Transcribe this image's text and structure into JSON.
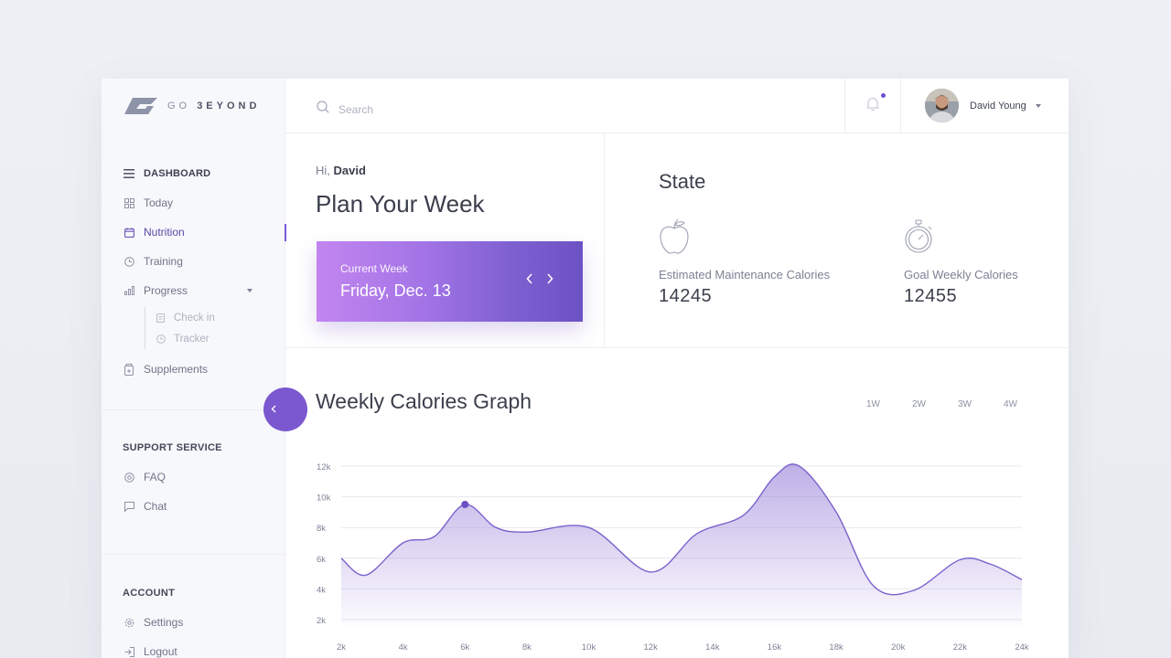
{
  "brand": {
    "logo_pre": "GO",
    "logo_post": "3EYOND"
  },
  "sidebar": {
    "nav": [
      {
        "label": "DASHBOARD",
        "icon": "menu-icon"
      },
      {
        "label": "Today",
        "icon": "grid-icon"
      },
      {
        "label": "Nutrition",
        "icon": "calendar-icon",
        "active": true
      },
      {
        "label": "Training",
        "icon": "clock-icon"
      },
      {
        "label": "Progress",
        "icon": "bar-chart-icon"
      }
    ],
    "sub": [
      {
        "label": "Check in",
        "icon": "clipboard-icon"
      },
      {
        "label": "Tracker",
        "icon": "clock-icon"
      }
    ],
    "supplements": "Supplements",
    "support_title": "SUPPORT SERVICE",
    "support": [
      {
        "label": "FAQ"
      },
      {
        "label": "Chat"
      }
    ],
    "account_title": "ACCOUNT",
    "account": [
      {
        "label": "Settings"
      },
      {
        "label": "Logout"
      }
    ]
  },
  "search": {
    "placeholder": "Search"
  },
  "user": {
    "name": "David Young"
  },
  "plan": {
    "greeting": "Hi,",
    "name": "David",
    "title": "Plan Your Week",
    "week_label": "Current Week",
    "week_date": "Friday, Dec. 13"
  },
  "state": {
    "title": "State",
    "stats": [
      {
        "label": "Estimated Maintenance Calories",
        "value": "14245",
        "icon": "apple-icon"
      },
      {
        "label": "Goal Weekly Calories",
        "value": "12455",
        "icon": "stopwatch-icon"
      }
    ]
  },
  "graph": {
    "title": "Weekly Calories Graph",
    "ranges": [
      "1W",
      "2W",
      "3W",
      "4W"
    ]
  },
  "colors": {
    "accent": "#7b58cf",
    "line": "#7a62cc",
    "fill": "#8e73d6"
  },
  "chart_data": {
    "type": "area",
    "x_ticks": [
      "2k",
      "4k",
      "6k",
      "8k",
      "10k",
      "12k",
      "14k",
      "16k",
      "18k",
      "20k",
      "22k",
      "24k"
    ],
    "y_ticks": [
      "2k",
      "4k",
      "6k",
      "8k",
      "10k",
      "12k"
    ],
    "ylim": [
      0,
      12
    ],
    "xlim": [
      2,
      24
    ],
    "x": [
      2,
      2.8,
      4,
      5,
      6,
      7,
      8,
      10,
      12,
      13.5,
      15,
      16,
      16.8,
      18,
      19.2,
      20.5,
      22,
      23,
      24
    ],
    "y": [
      6,
      4.9,
      7,
      7.4,
      9.5,
      8,
      7.7,
      8,
      5.1,
      7.6,
      8.8,
      11.3,
      12,
      9,
      4.2,
      3.9,
      5.9,
      5.6,
      4.6
    ],
    "highlight": {
      "x": 6,
      "y": 9.5
    },
    "grid": true
  }
}
